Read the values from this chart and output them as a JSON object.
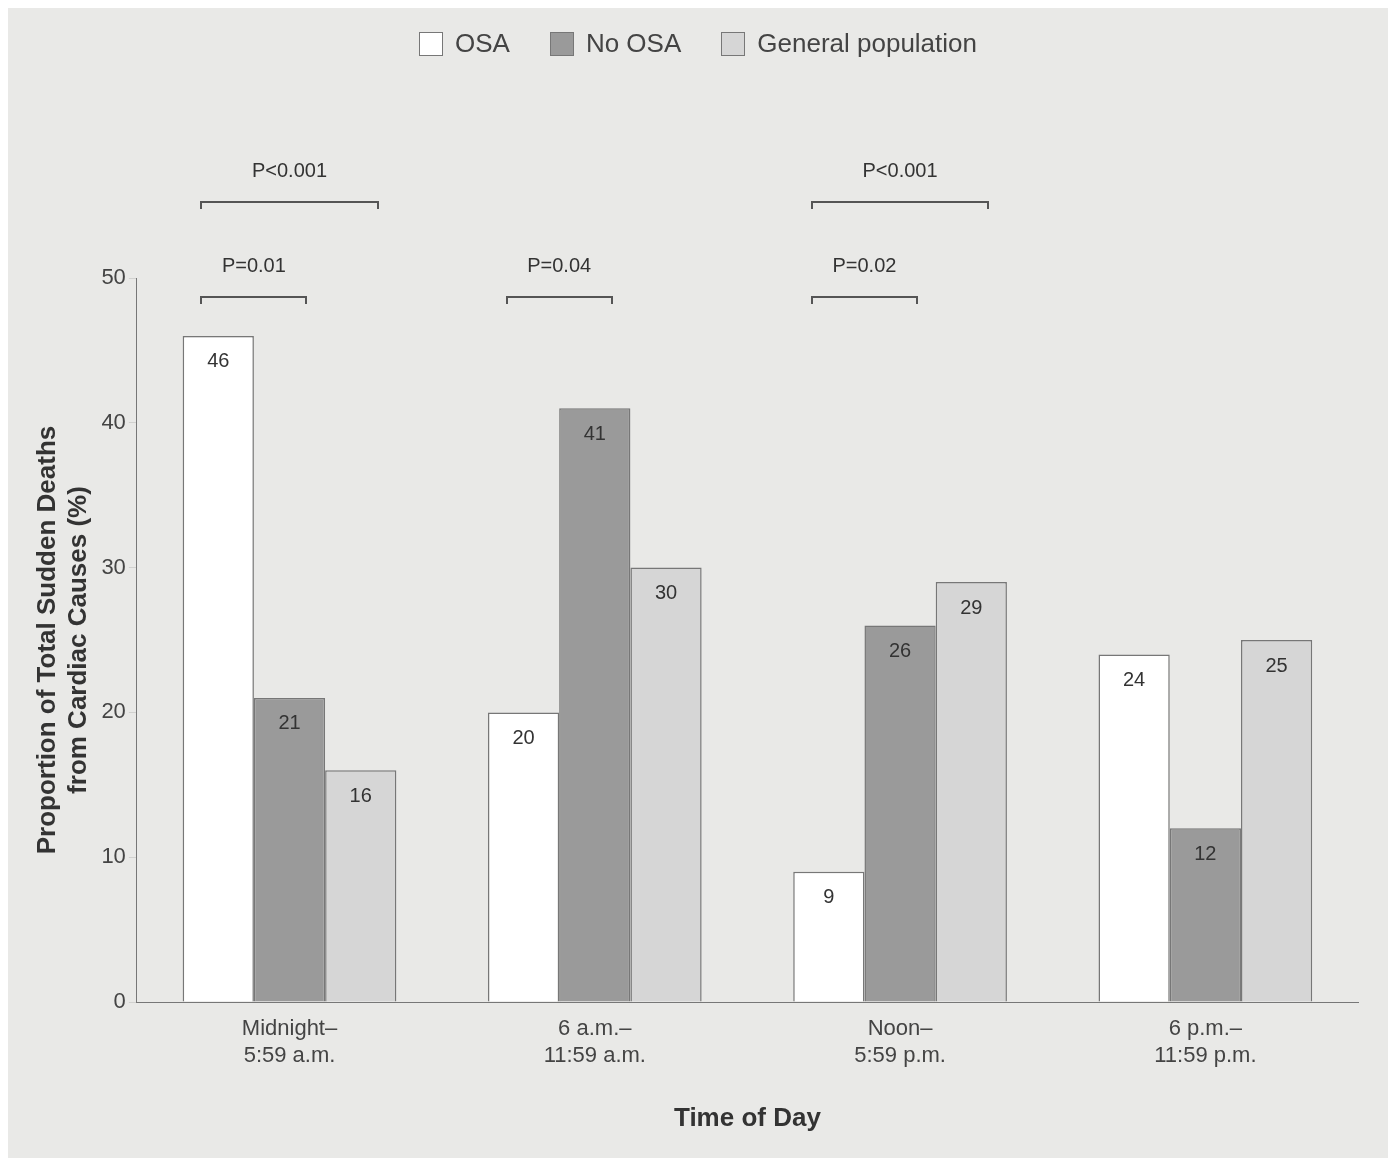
{
  "chart_data": {
    "type": "bar",
    "xlabel": "Time of Day",
    "ylabel": "Proportion of Total Sudden Deaths\nfrom Cardiac Causes (%)",
    "categories": [
      "Midnight–\n5:59 a.m.",
      "6 a.m.–\n11:59 a.m.",
      "Noon–\n5:59 p.m.",
      "6 p.m.–\n11:59 p.m."
    ],
    "series": [
      {
        "name": "OSA",
        "color": "#ffffff",
        "values": [
          46,
          20,
          9,
          24
        ]
      },
      {
        "name": "No OSA",
        "color": "#9a9a9a",
        "values": [
          21,
          41,
          26,
          12
        ]
      },
      {
        "name": "General population",
        "color": "#d6d6d6",
        "values": [
          16,
          30,
          29,
          25
        ]
      }
    ],
    "ylim": [
      0,
      50
    ],
    "yticks": [
      0,
      10,
      20,
      30,
      40,
      50
    ],
    "grid": false,
    "legend": "top",
    "data_labels": true,
    "annotations": [
      "P=0.01",
      "P<0.001",
      "P=0.04",
      "P=0.02",
      "P<0.001"
    ]
  }
}
